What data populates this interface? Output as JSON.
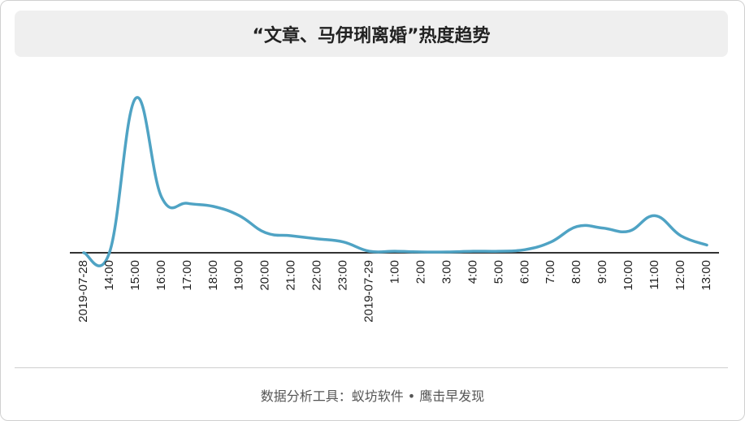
{
  "chart_data": {
    "type": "line",
    "title": "“文章、马伊琍离婚”热度趋势",
    "xlabel": "",
    "ylabel": "",
    "grid": false,
    "legend": "none",
    "line_color": "#4fa3c4",
    "categories": [
      "2019-07-28",
      "14:00",
      "15:00",
      "16:00",
      "17:00",
      "18:00",
      "19:00",
      "20:00",
      "21:00",
      "22:00",
      "23:00",
      "2019-07-29",
      "1:00",
      "2:00",
      "3:00",
      "4:00",
      "5:00",
      "6:00",
      "7:00",
      "8:00",
      "9:00",
      "10:00",
      "11:00",
      "12:00",
      "13:00"
    ],
    "series": [
      {
        "values": [
          0,
          0.5,
          100,
          36,
          32,
          30,
          24,
          13,
          11,
          9,
          7,
          1,
          1,
          0.5,
          0.5,
          1,
          1,
          2,
          7,
          17,
          16,
          14,
          24,
          11,
          5
        ]
      }
    ],
    "ylim": [
      -3,
      108
    ]
  },
  "footer": {
    "text": "数据分析工具：蚁坊软件 • 鹰击早发现"
  }
}
